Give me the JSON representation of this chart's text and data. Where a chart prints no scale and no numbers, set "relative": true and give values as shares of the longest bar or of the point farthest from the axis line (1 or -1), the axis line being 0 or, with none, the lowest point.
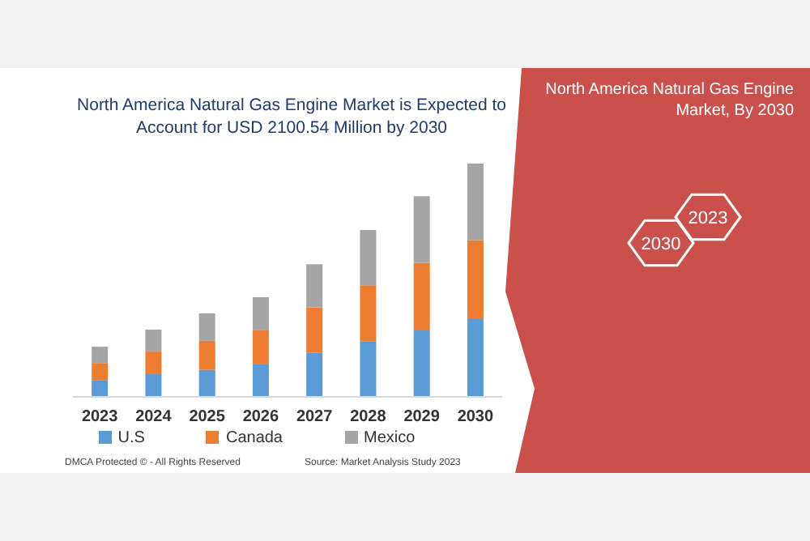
{
  "chart_data": {
    "type": "bar",
    "title": "North America Natural Gas Engine Market is Expected to Account for USD 2100.54 Million by 2030",
    "categories": [
      "2023",
      "2024",
      "2025",
      "2026",
      "2027",
      "2028",
      "2029",
      "2030"
    ],
    "stacked": true,
    "relative": true,
    "legend": "bottom",
    "series": [
      {
        "name": "U.S",
        "color": "#5b9bd5",
        "values": [
          0.07,
          0.097,
          0.116,
          0.142,
          0.188,
          0.239,
          0.285,
          0.333
        ]
      },
      {
        "name": "Canada",
        "color": "#ed7d31",
        "values": [
          0.075,
          0.097,
          0.124,
          0.145,
          0.196,
          0.239,
          0.29,
          0.339
        ]
      },
      {
        "name": "Mexico",
        "color": "#a5a5a5",
        "values": [
          0.07,
          0.094,
          0.118,
          0.14,
          0.185,
          0.237,
          0.285,
          0.328
        ]
      }
    ],
    "annotations": [
      "North America Natural Gas Engine Market, By 2030",
      "2030",
      "2023",
      "DMCA Protected © - All Rights Reserved",
      "Source: Market Analysis Study 2023"
    ]
  }
}
